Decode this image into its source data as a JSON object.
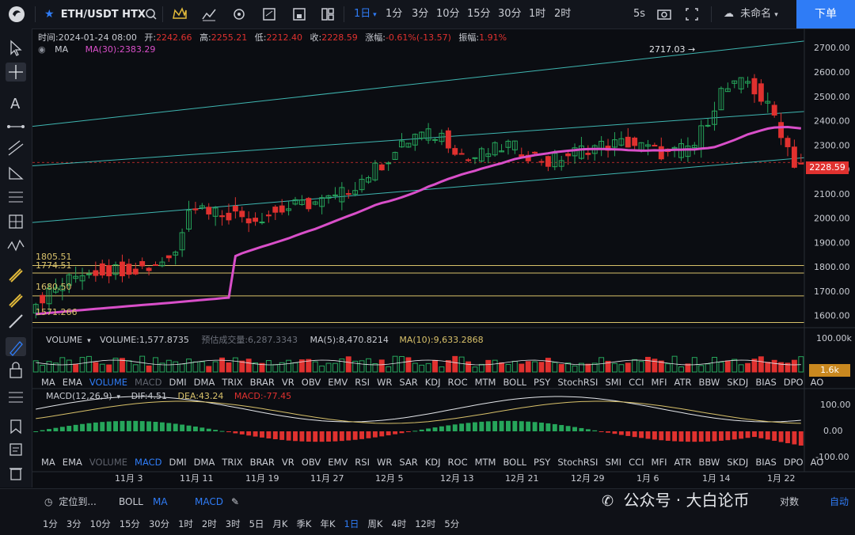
{
  "topbar": {
    "symbol": "ETH/USDT HTX",
    "timeframes": [
      "1日",
      "1分",
      "3分",
      "10分",
      "15分",
      "30分",
      "1时",
      "2时"
    ],
    "active_timeframe": "1日",
    "interval_right": "5s",
    "account": "未命名",
    "order_button": "下单"
  },
  "ohlc": {
    "time_label": "时间:",
    "time": "2024-01-24 08:00",
    "open_label": "开:",
    "open": "2242.66",
    "high_label": "高:",
    "high": "2255.21",
    "low_label": "低:",
    "low": "2212.40",
    "close_label": "收:",
    "close": "2228.59",
    "change_label": "涨幅:",
    "change": "-0.61%(-13.57)",
    "amp_label": "振幅:",
    "amp": "1.91%"
  },
  "ma_legend": {
    "name": "MA",
    "ma30": "MA(30):2383.29"
  },
  "price_axis": [
    "2700.00",
    "2600.00",
    "2500.00",
    "2400.00",
    "2300.00",
    "2200.00",
    "2100.00",
    "2000.00",
    "1900.00",
    "1800.00",
    "1700.00",
    "1600.00"
  ],
  "last_price": "2228.59",
  "annotations": {
    "high": "2717.03",
    "l1": "1805.51",
    "l2": "1774.51",
    "l3": "1680.50",
    "l4": "1571.266"
  },
  "volume_legend": {
    "name": "VOLUME",
    "value": "VOLUME:1,577.8735",
    "est": "预估成交量:6,287.3343",
    "ma5": "MA(5):8,470.8214",
    "ma10": "MA(10):9,633.2868"
  },
  "volume_axis": {
    "top": "100.00k",
    "last": "1.6k"
  },
  "macd_legend": {
    "name": "MACD(12,26,9)",
    "dif": "DIF:4.51",
    "dea": "DEA:43.24",
    "macd": "MACD:-77.45"
  },
  "macd_axis": [
    "100.00",
    "0.00",
    "-100.00"
  ],
  "indicator_tabs": [
    "MA",
    "EMA",
    "VOLUME",
    "MACD",
    "DMI",
    "DMA",
    "TRIX",
    "BRAR",
    "VR",
    "OBV",
    "EMV",
    "RSI",
    "WR",
    "SAR",
    "KDJ",
    "ROC",
    "MTM",
    "BOLL",
    "PSY",
    "StochRSI",
    "SMI",
    "CCI",
    "MFI",
    "ATR",
    "BBW",
    "SKDJ",
    "BIAS",
    "DPO",
    "AO"
  ],
  "date_axis": [
    "11月 3",
    "11月 11",
    "11月 19",
    "11月 27",
    "12月 5",
    "12月 13",
    "12月 21",
    "12月 29",
    "1月 6",
    "1月 14",
    "1月 22"
  ],
  "bottom": {
    "locate": "定位到...",
    "boll": "BOLL",
    "ma": "MA",
    "macd": "MACD",
    "pair": "对数",
    "auto": "自动",
    "watermark": "公众号 · 大白论币",
    "periods": [
      "1分",
      "3分",
      "10分",
      "15分",
      "30分",
      "1时",
      "2时",
      "3时",
      "5日",
      "月K",
      "季K",
      "年K",
      "1日",
      "周K",
      "4时",
      "12时",
      "5分"
    ],
    "active_period": "1日"
  },
  "colors": {
    "up": "#26a65b",
    "down": "#e0312f",
    "ma30": "#d94fc9",
    "accent": "#2f7cf6",
    "channel": "#3fb6b1",
    "hline": "#d8c16a"
  }
}
